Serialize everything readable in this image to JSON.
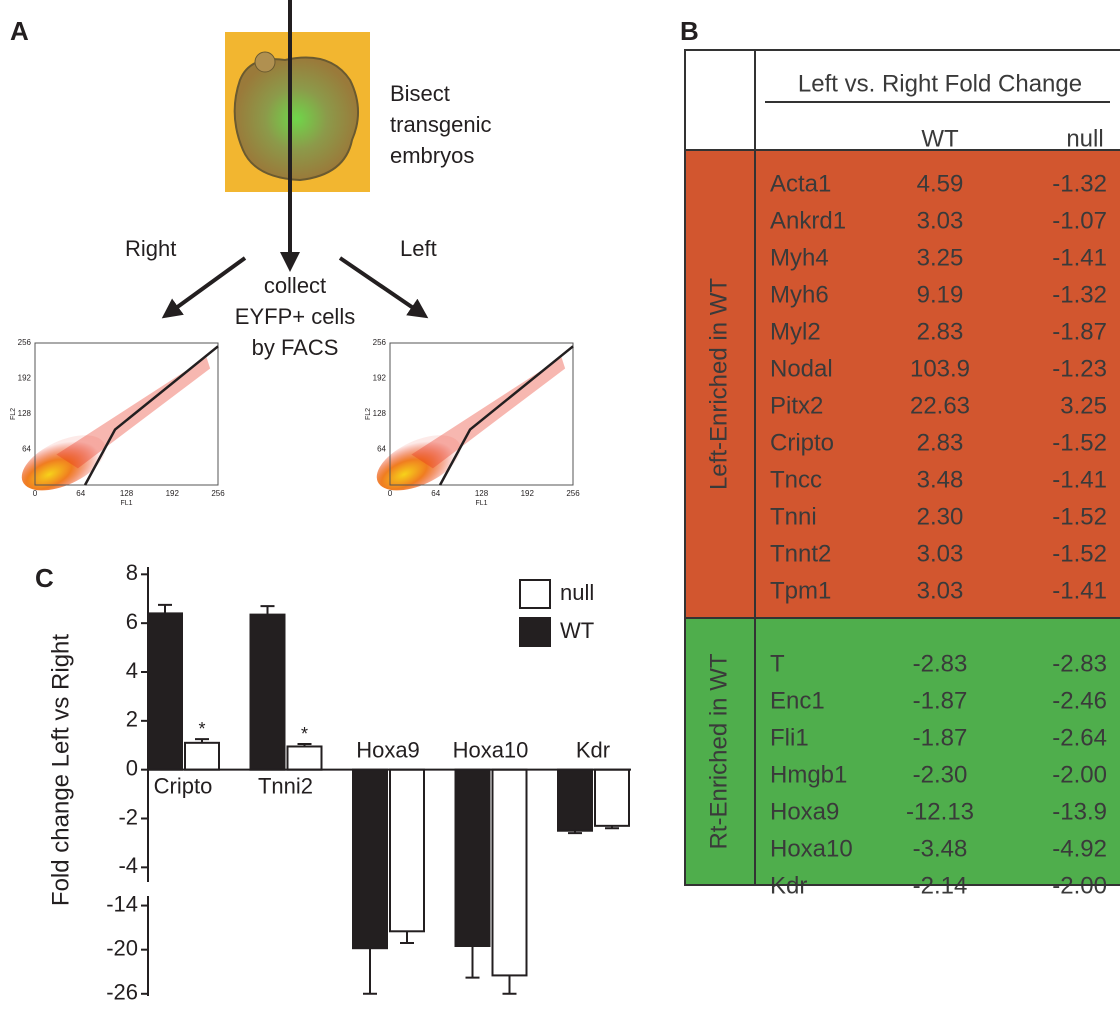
{
  "panels": {
    "a": "A",
    "b": "B",
    "c": "C"
  },
  "diagram": {
    "bisect": [
      "Bisect",
      "transgenic",
      "embryos"
    ],
    "right": "Right",
    "left": "Left",
    "collect": [
      "collect",
      "EYFP+ cells",
      "by FACS"
    ]
  },
  "facs_plots": [
    {
      "xlabel": "FL1",
      "ylabel": "FL2",
      "xlim": [
        0,
        256
      ],
      "ylim": [
        0,
        256
      ],
      "xticks": [
        0,
        64,
        128,
        192,
        256
      ],
      "yticks": [
        64,
        128,
        192,
        256
      ]
    },
    {
      "xlabel": "FL1",
      "ylabel": "FL2",
      "xlim": [
        0,
        256
      ],
      "ylim": [
        0,
        256
      ],
      "xticks": [
        0,
        64,
        128,
        192,
        256
      ],
      "yticks": [
        64,
        128,
        192,
        256
      ]
    }
  ],
  "table": {
    "header": "Left vs. Right Fold Change",
    "columns": [
      "WT",
      "null"
    ],
    "groups": [
      {
        "label": "Left-Enriched in WT",
        "color": "#d2562f",
        "rows": [
          [
            "Acta1",
            "4.59",
            "-1.32"
          ],
          [
            "Ankrd1",
            "3.03",
            "-1.07"
          ],
          [
            "Myh4",
            "3.25",
            "-1.41"
          ],
          [
            "Myh6",
            "9.19",
            "-1.32"
          ],
          [
            "Myl2",
            "2.83",
            "-1.87"
          ],
          [
            "Nodal",
            "103.9",
            "-1.23"
          ],
          [
            "Pitx2",
            "22.63",
            "3.25"
          ],
          [
            "Cripto",
            "2.83",
            "-1.52"
          ],
          [
            "Tncc",
            "3.48",
            "-1.41"
          ],
          [
            "Tnni",
            "2.30",
            "-1.52"
          ],
          [
            "Tnnt2",
            "3.03",
            "-1.52"
          ],
          [
            "Tpm1",
            "3.03",
            "-1.41"
          ]
        ]
      },
      {
        "label": "Rt-Enriched in WT",
        "color": "#4fae4c",
        "rows": [
          [
            "T",
            "-2.83",
            "-2.83"
          ],
          [
            "Enc1",
            "-1.87",
            "-2.46"
          ],
          [
            "Fli1",
            "-1.87",
            "-2.64"
          ],
          [
            "Hmgb1",
            "-2.30",
            "-2.00"
          ],
          [
            "Hoxa9",
            "-12.13",
            "-13.9"
          ],
          [
            "Hoxa10",
            "-3.48",
            "-4.92"
          ],
          [
            "Kdr",
            "-2.14",
            "-2.00"
          ]
        ]
      }
    ]
  },
  "chart_data": {
    "type": "bar",
    "ylabel": "Fold change Left vs Right",
    "categories": [
      "Cripto",
      "Tnni2",
      "Hoxa9",
      "Hoxa10",
      "Kdr"
    ],
    "series": [
      {
        "name": "WT",
        "color": "#231f20",
        "values": [
          6.4,
          6.35,
          -19.8,
          -19.5,
          -2.5
        ],
        "errors": [
          0.35,
          0.35,
          6.2,
          4.3,
          0.1
        ]
      },
      {
        "name": "null",
        "color": "#ffffff",
        "values": [
          1.1,
          0.95,
          -17.5,
          -23.5,
          -2.3
        ],
        "errors": [
          0.15,
          0.1,
          1.6,
          2.5,
          0.1
        ],
        "markers": [
          "*",
          "*",
          null,
          null,
          null
        ]
      }
    ],
    "y_segments": [
      {
        "ylim": [
          -4.6,
          8.3
        ]
      },
      {
        "ylim": [
          -26.3,
          -12.7
        ]
      }
    ],
    "yticks": [
      8,
      6,
      4,
      2,
      0,
      -2,
      -4,
      -14,
      -20,
      -26
    ]
  }
}
